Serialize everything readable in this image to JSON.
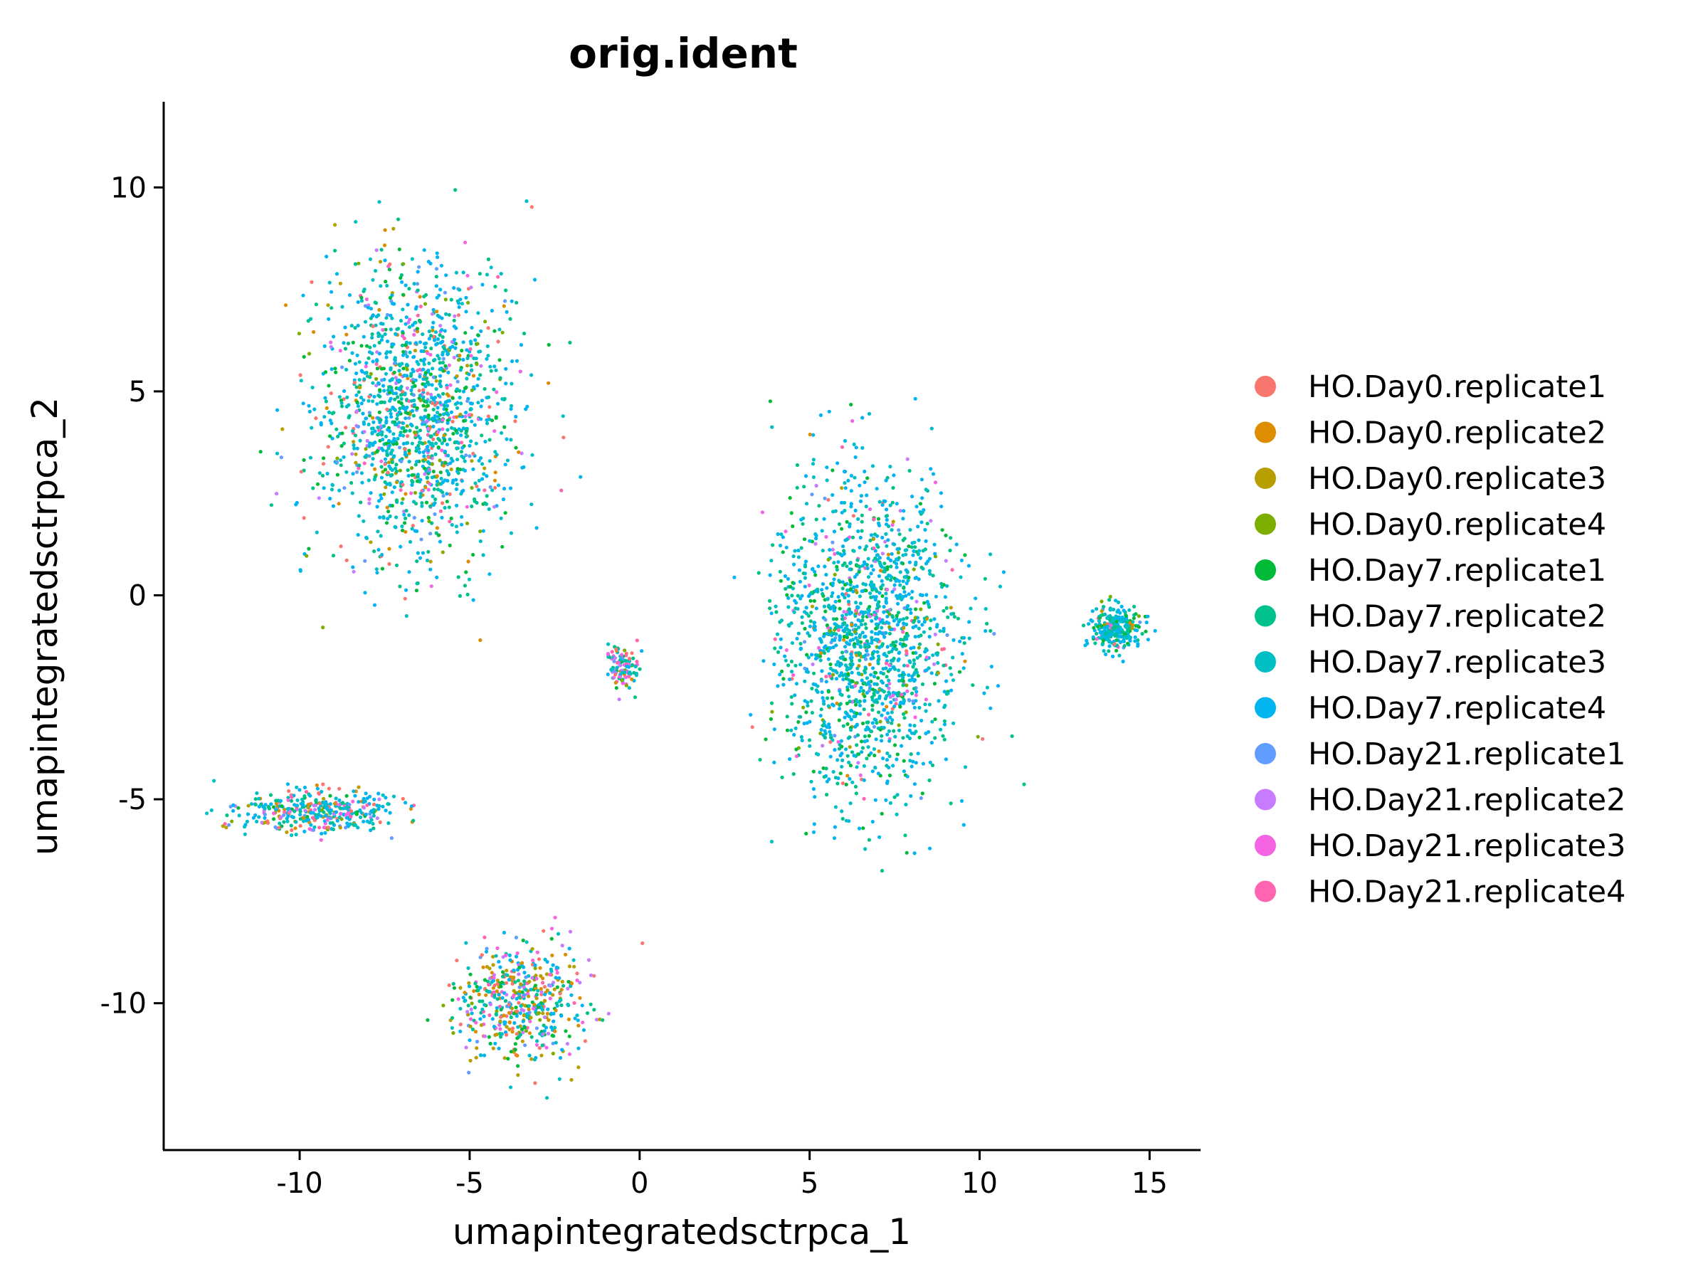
{
  "chart_data": {
    "type": "scatter",
    "title": "orig.ident",
    "xlabel": "umapintegratedsctrpca_1",
    "ylabel": "umapintegratedsctrpca_2",
    "xlim": [
      -14,
      16.5
    ],
    "ylim": [
      -13.6,
      12.1
    ],
    "xticks": [
      -10,
      -5,
      0,
      5,
      10,
      15
    ],
    "yticks": [
      -10,
      -5,
      0,
      5,
      10
    ],
    "xtick_labels": [
      "-10",
      "-5",
      "0",
      "5",
      "10",
      "15"
    ],
    "ytick_labels": [
      "-10",
      "-5",
      "0",
      "5",
      "10"
    ],
    "grid": false,
    "legend_position": "right",
    "series": [
      {
        "name": "HO.Day0.replicate1",
        "color": "#F8766D"
      },
      {
        "name": "HO.Day0.replicate2",
        "color": "#DE8C00"
      },
      {
        "name": "HO.Day0.replicate3",
        "color": "#B79F00"
      },
      {
        "name": "HO.Day0.replicate4",
        "color": "#7CAE00"
      },
      {
        "name": "HO.Day7.replicate1",
        "color": "#00BA38"
      },
      {
        "name": "HO.Day7.replicate2",
        "color": "#00C08B"
      },
      {
        "name": "HO.Day7.replicate3",
        "color": "#00BFC4"
      },
      {
        "name": "HO.Day7.replicate4",
        "color": "#00B4F0"
      },
      {
        "name": "HO.Day21.replicate1",
        "color": "#619CFF"
      },
      {
        "name": "HO.Day21.replicate2",
        "color": "#C77CFF"
      },
      {
        "name": "HO.Day21.replicate3",
        "color": "#F564E3"
      },
      {
        "name": "HO.Day21.replicate4",
        "color": "#FF64B0"
      }
    ],
    "clusters": [
      {
        "name": "upper-left",
        "center": [
          -6.5,
          4.5
        ],
        "spread": [
          2.6,
          3.2
        ],
        "weights": [
          0.04,
          0.03,
          0.03,
          0.03,
          0.1,
          0.14,
          0.2,
          0.32,
          0.03,
          0.03,
          0.03,
          0.02
        ]
      },
      {
        "name": "right-large",
        "center": [
          6.8,
          -1.0
        ],
        "spread": [
          2.4,
          3.6
        ],
        "weights": [
          0.01,
          0.01,
          0.01,
          0.02,
          0.1,
          0.18,
          0.22,
          0.38,
          0.02,
          0.02,
          0.02,
          0.01
        ]
      },
      {
        "name": "right-tail",
        "center": [
          14.0,
          -0.8
        ],
        "spread": [
          0.7,
          0.5
        ],
        "weights": [
          0.01,
          0.01,
          0.01,
          0.02,
          0.12,
          0.18,
          0.22,
          0.36,
          0.02,
          0.02,
          0.02,
          0.01
        ]
      },
      {
        "name": "bottom-center",
        "center": [
          -3.5,
          -10.0
        ],
        "spread": [
          1.8,
          1.3
        ],
        "weights": [
          0.06,
          0.1,
          0.12,
          0.04,
          0.1,
          0.1,
          0.12,
          0.16,
          0.06,
          0.05,
          0.06,
          0.03
        ]
      },
      {
        "name": "left-lower",
        "center": [
          -9.5,
          -5.3
        ],
        "spread": [
          2.2,
          0.5
        ],
        "weights": [
          0.08,
          0.06,
          0.06,
          0.03,
          0.06,
          0.1,
          0.18,
          0.26,
          0.05,
          0.04,
          0.05,
          0.03
        ]
      },
      {
        "name": "center-small",
        "center": [
          -0.5,
          -1.8
        ],
        "spread": [
          0.4,
          0.5
        ],
        "weights": [
          0.04,
          0.02,
          0.02,
          0.02,
          0.05,
          0.08,
          0.15,
          0.2,
          0.06,
          0.1,
          0.16,
          0.1
        ]
      }
    ]
  }
}
